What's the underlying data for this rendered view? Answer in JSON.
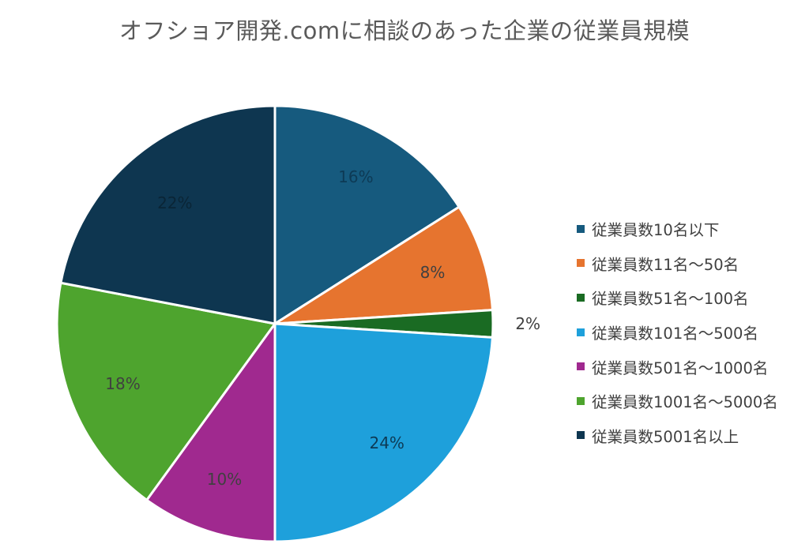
{
  "chart_data": {
    "type": "pie",
    "title": "オフショア開発.comに相談のあった企業の従業員規模",
    "categories": [
      "従業員数10名以下",
      "従業員数11名～50名",
      "従業員数51名～100名",
      "従業員数101名～500名",
      "従業員数501名～1000名",
      "従業員数1001名～5000名",
      "従業員数5001名以上"
    ],
    "values": [
      16,
      8,
      2,
      24,
      10,
      18,
      22
    ],
    "data_labels": [
      "16%",
      "8%",
      "2%",
      "24%",
      "10%",
      "18%",
      "22%"
    ],
    "colors": [
      "#165a7e",
      "#e6742f",
      "#1a6b23",
      "#1ea0db",
      "#a0298f",
      "#4ea42e",
      "#0e3650"
    ],
    "legend_position": "right"
  }
}
